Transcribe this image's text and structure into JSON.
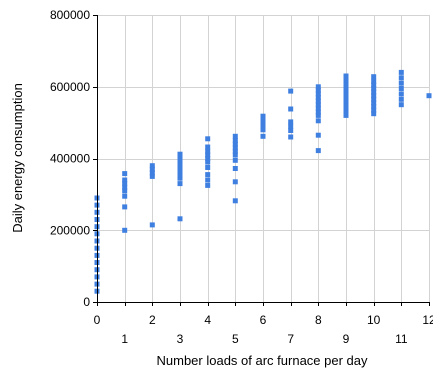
{
  "chart_data": {
    "type": "scatter",
    "xlabel": "Number loads of arc furnace per day",
    "ylabel": "Daily energy consumption",
    "xlim": [
      0,
      12
    ],
    "ylim": [
      0,
      800000
    ],
    "x_ticks": [
      0,
      1,
      2,
      3,
      4,
      5,
      6,
      7,
      8,
      9,
      10,
      11,
      12
    ],
    "y_ticks": [
      0,
      200000,
      400000,
      600000,
      800000
    ],
    "x_tick_labels": [
      "0",
      "1",
      "2",
      "3",
      "4",
      "5",
      "6",
      "7",
      "8",
      "9",
      "10",
      "11",
      "12"
    ],
    "y_tick_labels": [
      "0",
      "200000",
      "400000",
      "600000",
      "800000"
    ],
    "grid": true,
    "marker_color": "#3f7fe0",
    "series": [
      {
        "points": [
          [
            0,
            30000
          ],
          [
            0,
            50000
          ],
          [
            0,
            70000
          ],
          [
            0,
            90000
          ],
          [
            0,
            110000
          ],
          [
            0,
            130000
          ],
          [
            0,
            150000
          ],
          [
            0,
            170000
          ],
          [
            0,
            190000
          ],
          [
            0,
            210000
          ],
          [
            0,
            230000
          ],
          [
            0,
            250000
          ],
          [
            0,
            270000
          ],
          [
            0,
            290000
          ],
          [
            1,
            200000
          ],
          [
            1,
            265000
          ],
          [
            1,
            295000
          ],
          [
            1,
            310000
          ],
          [
            1,
            320000
          ],
          [
            1,
            330000
          ],
          [
            1,
            340000
          ],
          [
            1,
            358000
          ],
          [
            2,
            215000
          ],
          [
            2,
            350000
          ],
          [
            2,
            360000
          ],
          [
            2,
            370000
          ],
          [
            2,
            380000
          ],
          [
            3,
            232000
          ],
          [
            3,
            330000
          ],
          [
            3,
            345000
          ],
          [
            3,
            355000
          ],
          [
            3,
            365000
          ],
          [
            3,
            375000
          ],
          [
            3,
            385000
          ],
          [
            3,
            395000
          ],
          [
            3,
            405000
          ],
          [
            3,
            412000
          ],
          [
            4,
            325000
          ],
          [
            4,
            340000
          ],
          [
            4,
            355000
          ],
          [
            4,
            375000
          ],
          [
            4,
            390000
          ],
          [
            4,
            400000
          ],
          [
            4,
            410000
          ],
          [
            4,
            420000
          ],
          [
            4,
            432000
          ],
          [
            4,
            455000
          ],
          [
            5,
            282000
          ],
          [
            5,
            335000
          ],
          [
            5,
            372000
          ],
          [
            5,
            395000
          ],
          [
            5,
            410000
          ],
          [
            5,
            420000
          ],
          [
            5,
            430000
          ],
          [
            5,
            440000
          ],
          [
            5,
            450000
          ],
          [
            5,
            462000
          ],
          [
            6,
            462000
          ],
          [
            6,
            480000
          ],
          [
            6,
            492000
          ],
          [
            6,
            505000
          ],
          [
            6,
            518000
          ],
          [
            7,
            460000
          ],
          [
            7,
            478000
          ],
          [
            7,
            490000
          ],
          [
            7,
            502000
          ],
          [
            7,
            538000
          ],
          [
            7,
            588000
          ],
          [
            8,
            422000
          ],
          [
            8,
            465000
          ],
          [
            8,
            505000
          ],
          [
            8,
            520000
          ],
          [
            8,
            530000
          ],
          [
            8,
            540000
          ],
          [
            8,
            550000
          ],
          [
            8,
            560000
          ],
          [
            8,
            570000
          ],
          [
            8,
            580000
          ],
          [
            8,
            590000
          ],
          [
            8,
            600000
          ],
          [
            9,
            520000
          ],
          [
            9,
            530000
          ],
          [
            9,
            540000
          ],
          [
            9,
            550000
          ],
          [
            9,
            560000
          ],
          [
            9,
            570000
          ],
          [
            9,
            580000
          ],
          [
            9,
            590000
          ],
          [
            9,
            600000
          ],
          [
            9,
            610000
          ],
          [
            9,
            620000
          ],
          [
            9,
            630000
          ],
          [
            10,
            525000
          ],
          [
            10,
            535000
          ],
          [
            10,
            545000
          ],
          [
            10,
            555000
          ],
          [
            10,
            565000
          ],
          [
            10,
            575000
          ],
          [
            10,
            585000
          ],
          [
            10,
            595000
          ],
          [
            10,
            605000
          ],
          [
            10,
            615000
          ],
          [
            10,
            628000
          ],
          [
            11,
            550000
          ],
          [
            11,
            565000
          ],
          [
            11,
            580000
          ],
          [
            11,
            595000
          ],
          [
            11,
            610000
          ],
          [
            11,
            625000
          ],
          [
            11,
            640000
          ],
          [
            12,
            575000
          ]
        ]
      }
    ]
  }
}
